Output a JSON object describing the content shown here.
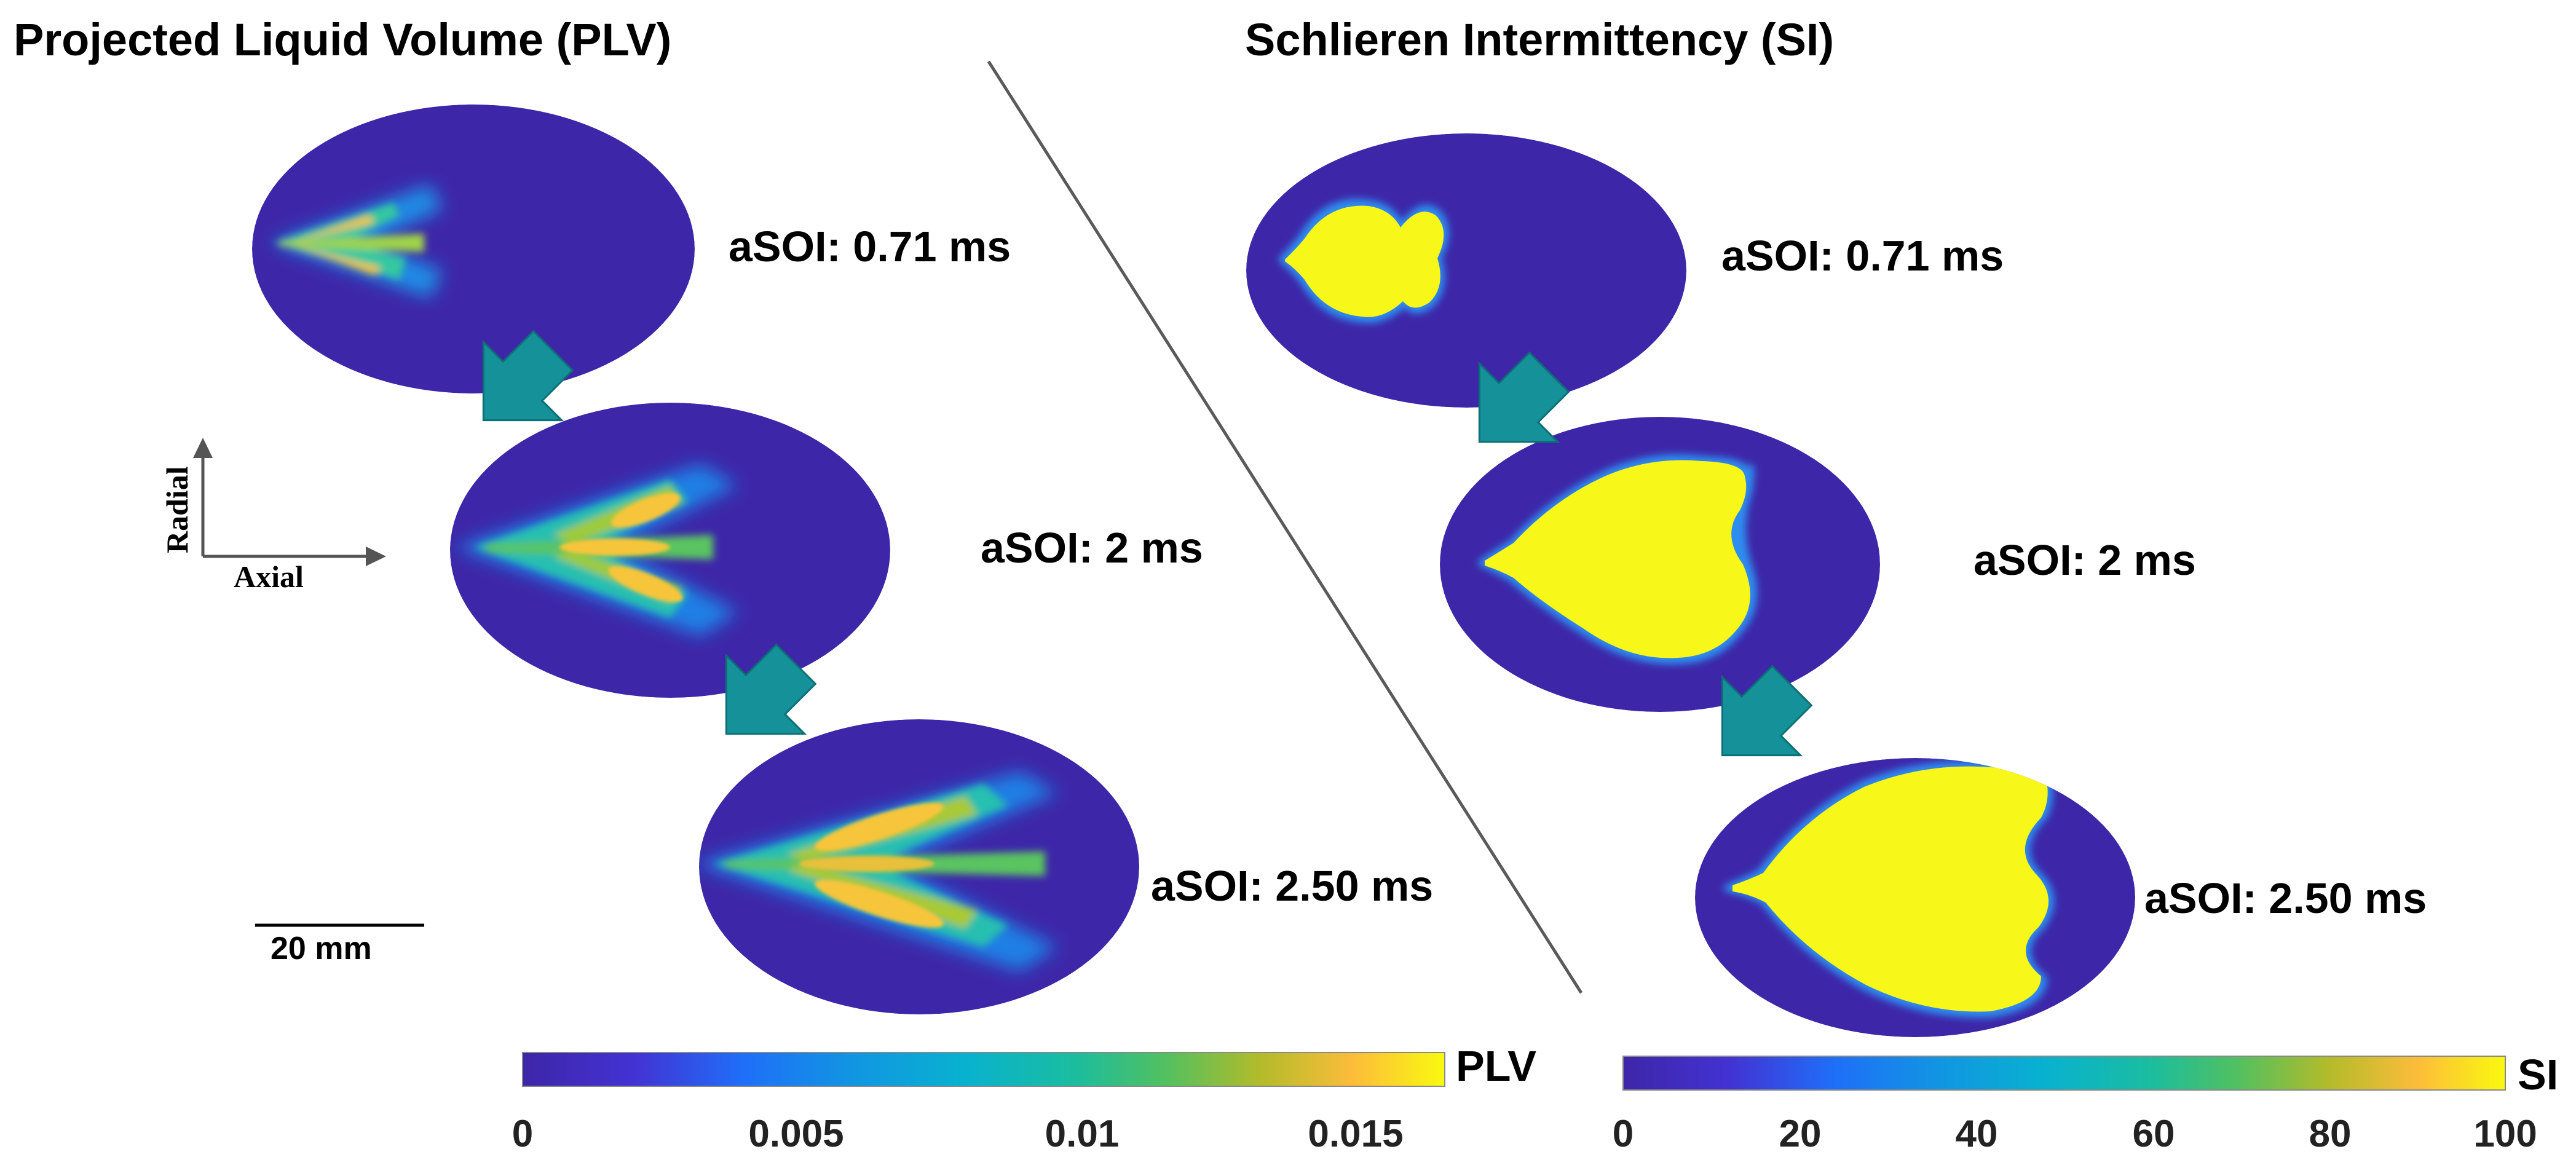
{
  "titles": {
    "left": "Projected Liquid Volume (PLV)",
    "right": "Schlieren Intermittency (SI)"
  },
  "frame_labels": {
    "t1": "aSOI: 0.71 ms",
    "t2": "aSOI: 2 ms",
    "t3": "aSOI: 2.50 ms"
  },
  "axes_indicator": {
    "radial": "Radial",
    "axial": "Axial"
  },
  "scale_bar": {
    "label": "20 mm"
  },
  "colorbars": {
    "plv": {
      "title": "PLV",
      "ticks": [
        "0",
        "0.005",
        "0.01",
        "0.015"
      ]
    },
    "si": {
      "title": "SI",
      "ticks": [
        "0",
        "20",
        "40",
        "60",
        "80",
        "100"
      ]
    }
  },
  "colors": {
    "background_fill": "#3d27a8",
    "arrow": "#15919a",
    "divider": "#5a5a5a",
    "yellow": "#f7f71a"
  }
}
